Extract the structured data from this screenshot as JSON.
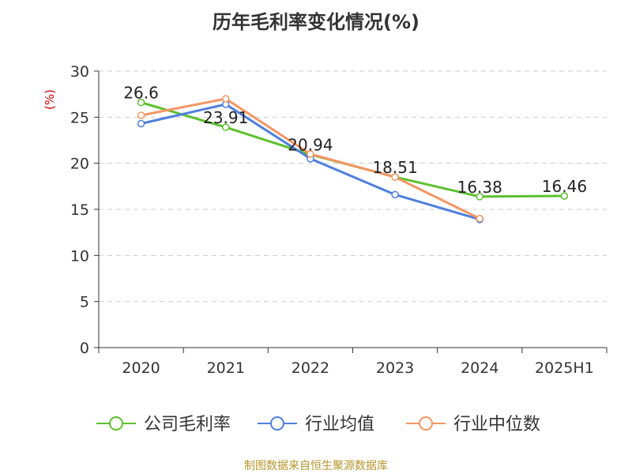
{
  "page": {
    "title": "历年毛利率变化情况(%)",
    "source": "制图数据来自恒生聚源数据库"
  },
  "chart_data": {
    "type": "line",
    "title": "历年毛利率变化情况(%)",
    "ylabel": "(%)",
    "xlabel": "",
    "categories": [
      "2020",
      "2021",
      "2022",
      "2023",
      "2024",
      "2025H1"
    ],
    "ylim": [
      0,
      30
    ],
    "yticks": [
      0,
      5,
      10,
      15,
      20,
      25,
      30
    ],
    "grid": true,
    "legend_position": "bottom",
    "series": [
      {
        "name": "公司毛利率",
        "color": "#5cc02d",
        "values": [
          26.6,
          23.91,
          20.94,
          18.51,
          16.38,
          16.46
        ],
        "labels": [
          "26.6",
          "23.91",
          "20.94",
          "18.51",
          "16.38",
          "16.46"
        ]
      },
      {
        "name": "行业均值",
        "color": "#4f7fde",
        "values": [
          24.3,
          26.4,
          20.5,
          16.6,
          13.9,
          null
        ]
      },
      {
        "name": "行业中位数",
        "color": "#f59563",
        "values": [
          25.2,
          27.0,
          21.0,
          18.5,
          14.0,
          null
        ]
      }
    ]
  }
}
